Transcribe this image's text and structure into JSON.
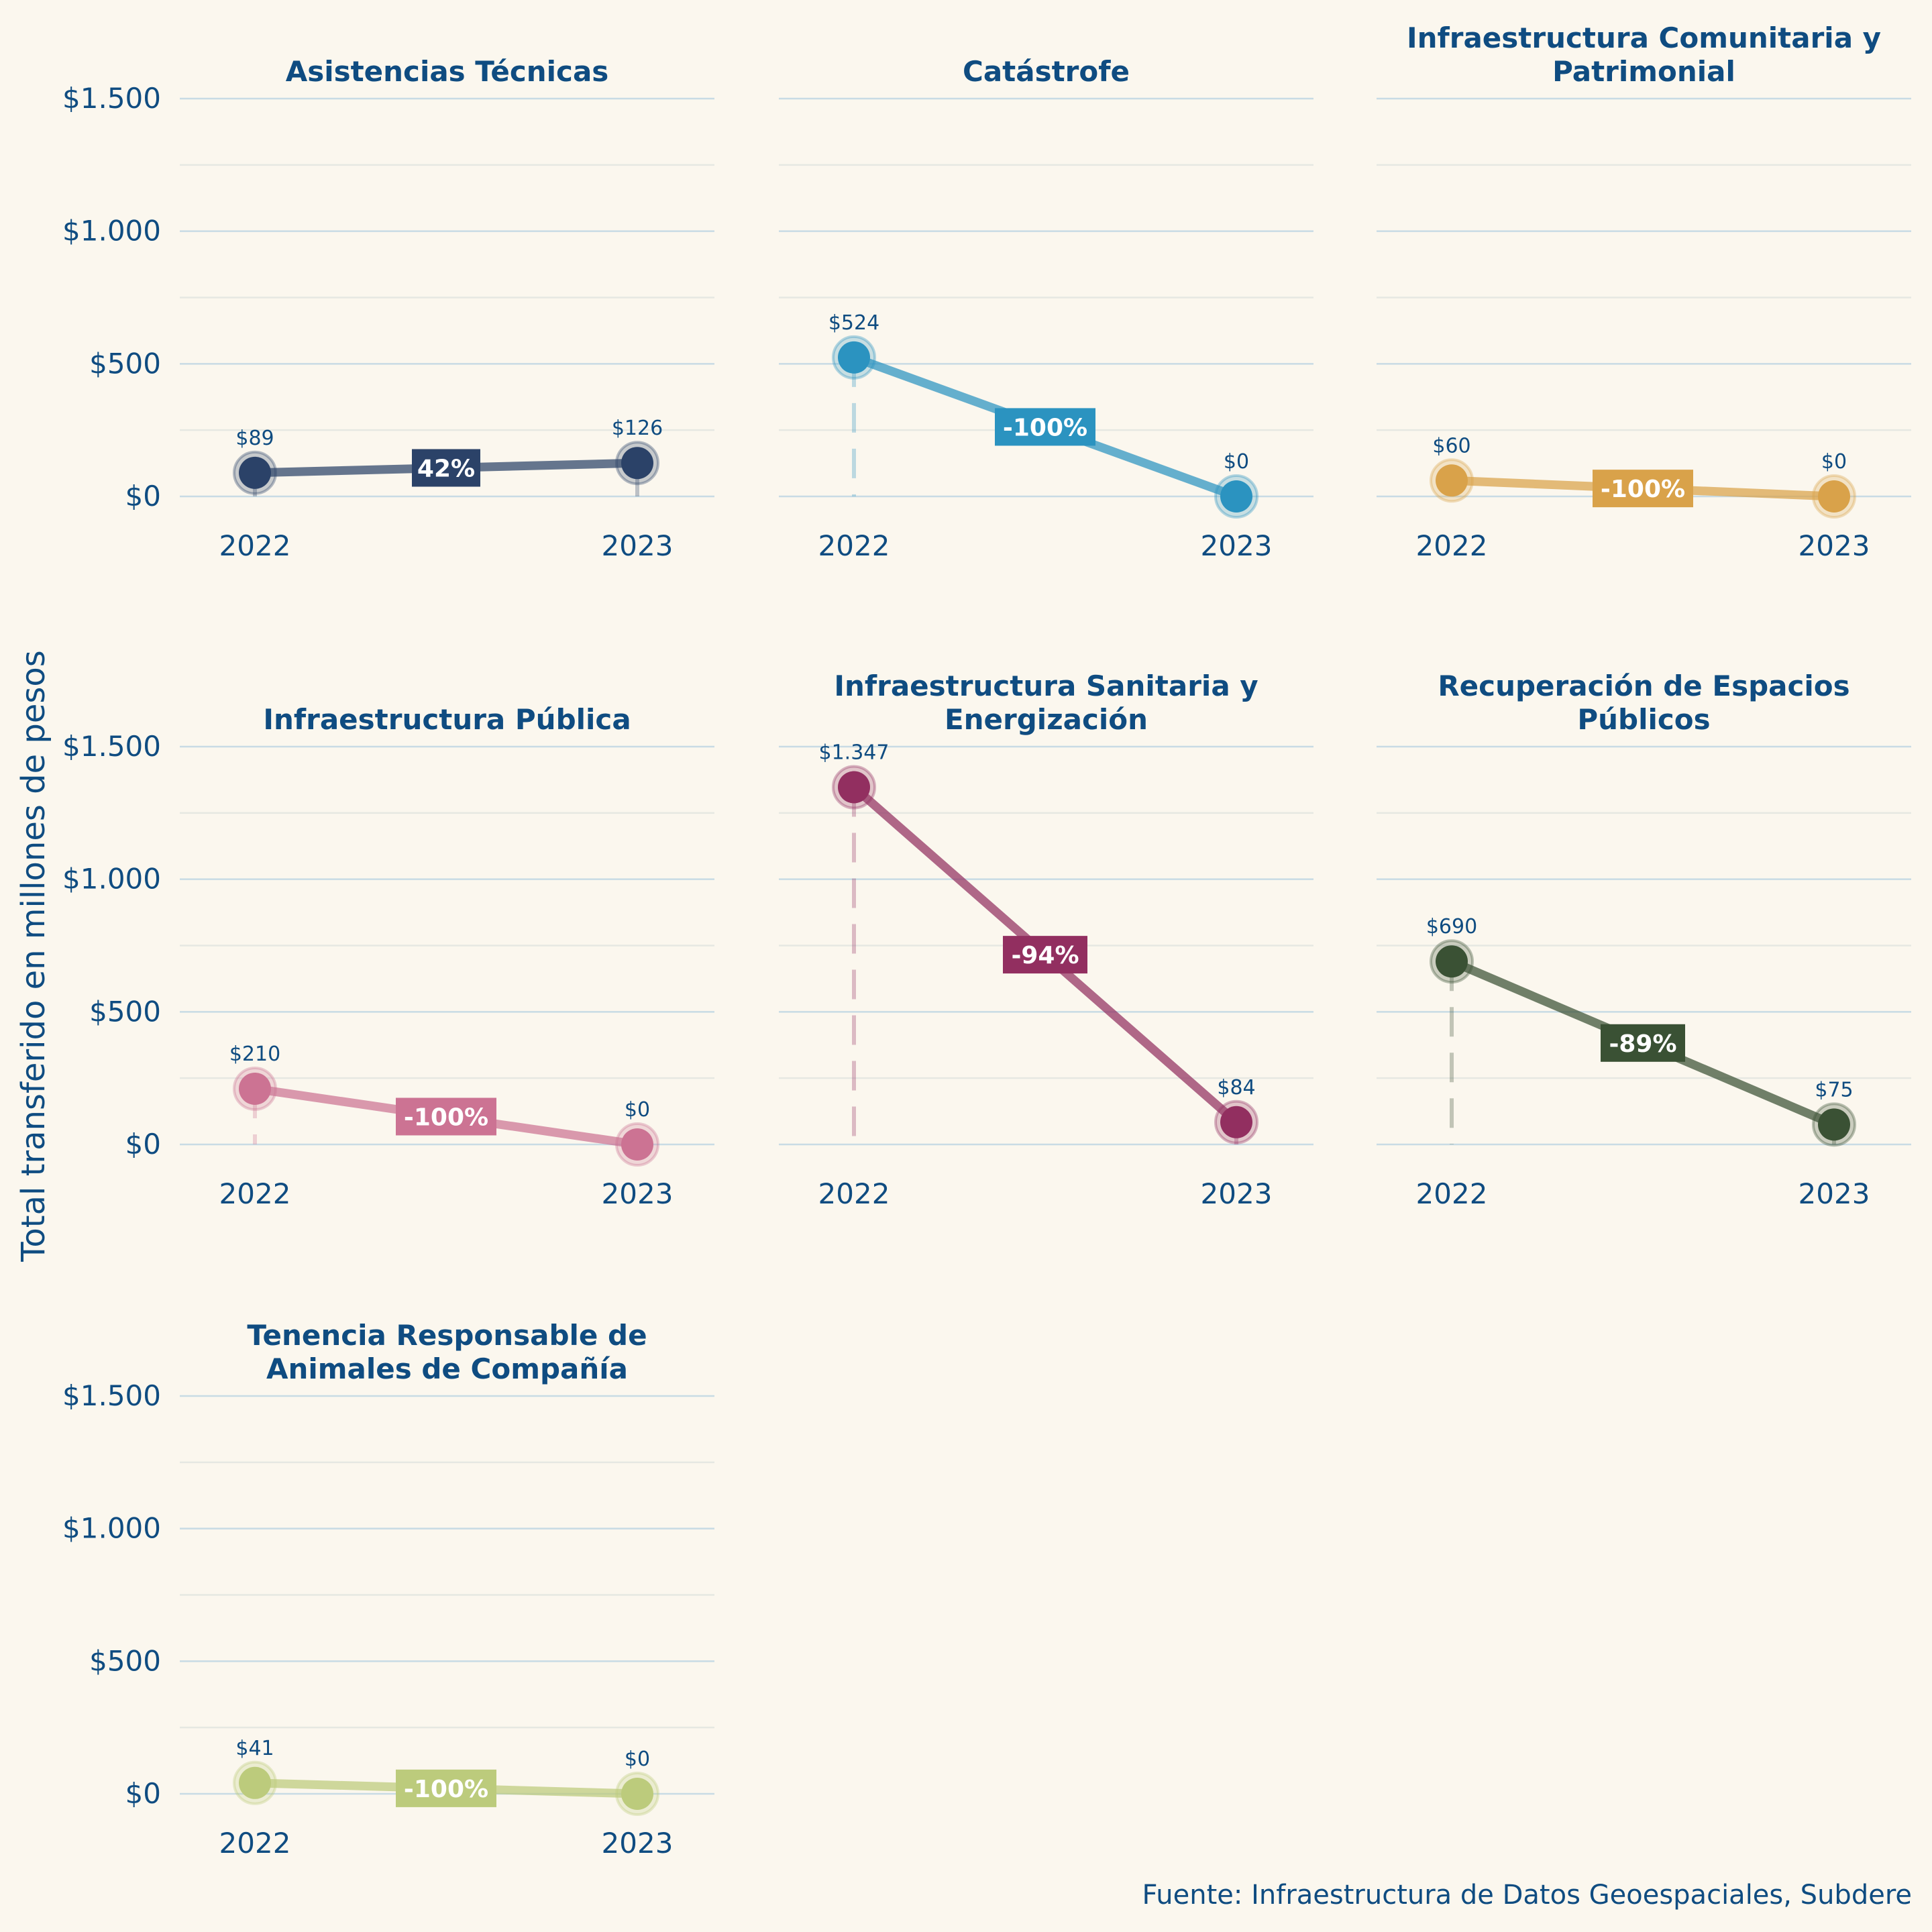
{
  "chart_data": {
    "type": "line",
    "layout": "small-multiples",
    "ylabel": "Total transferido en millones de pesos",
    "source": "Fuente: Infraestructura de Datos Geoespaciales, Subdere",
    "x": [
      "2022",
      "2023"
    ],
    "ylim": [
      0,
      1500
    ],
    "y_ticks": [
      0,
      500,
      1000,
      1500
    ],
    "y_tick_labels": [
      "$0",
      "$500",
      "$1.000",
      "$1.500"
    ],
    "y_minor_ticks": [
      250,
      750,
      1250
    ],
    "grid": true,
    "panels": [
      {
        "title_lines": [
          "Asistencias Técnicas"
        ],
        "color": "#2b4268",
        "values": [
          89,
          126
        ],
        "value_labels": [
          "$89",
          "$126"
        ],
        "change_label": "42%"
      },
      {
        "title_lines": [
          "Catástrofe"
        ],
        "color": "#2b93c0",
        "values": [
          524,
          0
        ],
        "value_labels": [
          "$524",
          "$0"
        ],
        "change_label": "-100%"
      },
      {
        "title_lines": [
          "Infraestructura Comunitaria y",
          "Patrimonial"
        ],
        "color": "#d9a24a",
        "values": [
          60,
          0
        ],
        "value_labels": [
          "$60",
          "$0"
        ],
        "change_label": "-100%"
      },
      {
        "title_lines": [
          "Infraestructura Pública"
        ],
        "color": "#cc7393",
        "values": [
          210,
          0
        ],
        "value_labels": [
          "$210",
          "$0"
        ],
        "change_label": "-100%"
      },
      {
        "title_lines": [
          "Infraestructura Sanitaria y",
          "Energización"
        ],
        "color": "#922f60",
        "values": [
          1347,
          84
        ],
        "value_labels": [
          "$1.347",
          "$84"
        ],
        "change_label": "-94%"
      },
      {
        "title_lines": [
          "Recuperación de Espacios",
          "Públicos"
        ],
        "color": "#3a5134",
        "values": [
          690,
          75
        ],
        "value_labels": [
          "$690",
          "$75"
        ],
        "change_label": "-89%"
      },
      {
        "title_lines": [
          "Tenencia Responsable de",
          "Animales de Compañía"
        ],
        "color": "#bccb7c",
        "values": [
          41,
          0
        ],
        "value_labels": [
          "$41",
          "$0"
        ],
        "change_label": "-100%"
      }
    ]
  },
  "colors": {
    "background": "#fbf7ee",
    "text": "#0f4c81",
    "grid_major": "#c8dbe4",
    "grid_minor": "#e6e8e2"
  }
}
